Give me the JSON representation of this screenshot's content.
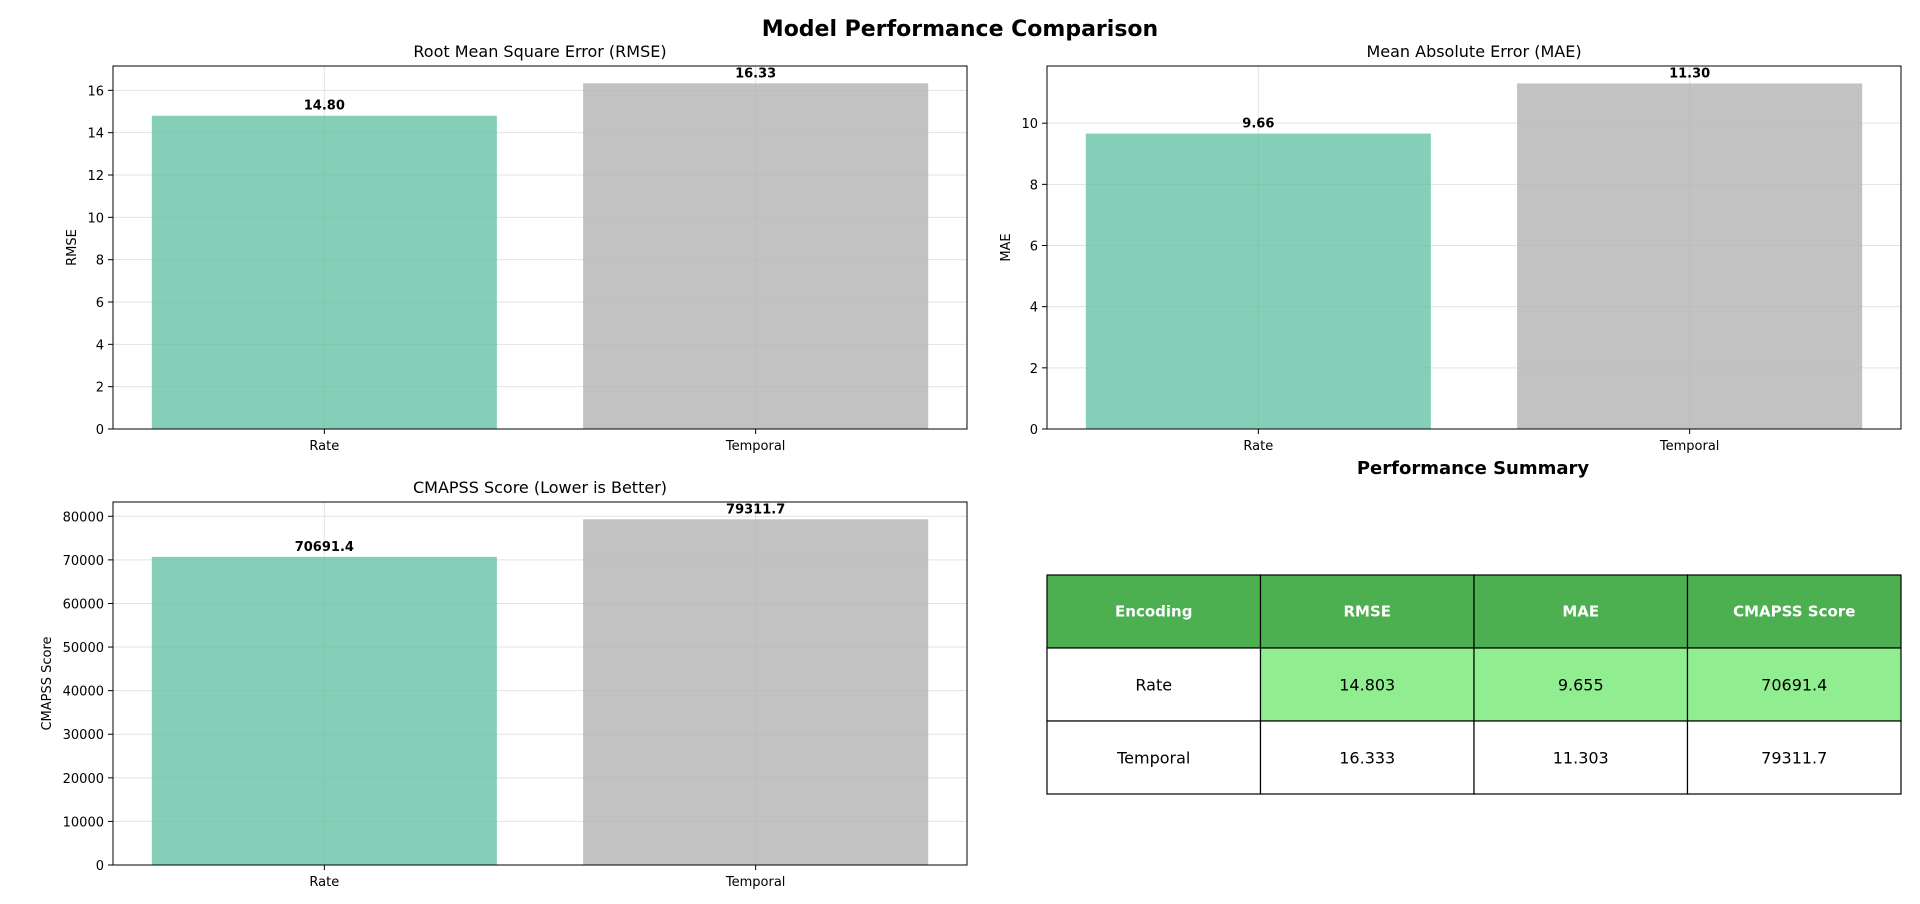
{
  "figure": {
    "title": "Model Performance Comparison"
  },
  "chart_data": [
    {
      "type": "bar",
      "title": "Root Mean Square Error (RMSE)",
      "xlabel": "",
      "ylabel": "RMSE",
      "categories": [
        "Rate",
        "Temporal"
      ],
      "values": [
        14.8,
        16.33
      ],
      "value_labels": [
        "14.80",
        "16.33"
      ],
      "ylim": [
        0,
        17.15
      ],
      "yticks": [
        0,
        2,
        4,
        6,
        8,
        10,
        12,
        14,
        16
      ],
      "bar_colors": [
        "#66c2a5",
        "#b3b3b3"
      ],
      "grid": true
    },
    {
      "type": "bar",
      "title": "Mean Absolute Error (MAE)",
      "xlabel": "",
      "ylabel": "MAE",
      "categories": [
        "Rate",
        "Temporal"
      ],
      "values": [
        9.66,
        11.3
      ],
      "value_labels": [
        "9.66",
        "11.30"
      ],
      "ylim": [
        0,
        11.87
      ],
      "yticks": [
        0,
        2,
        4,
        6,
        8,
        10
      ],
      "bar_colors": [
        "#66c2a5",
        "#b3b3b3"
      ],
      "grid": true
    },
    {
      "type": "bar",
      "title": "CMAPSS Score (Lower is Better)",
      "xlabel": "",
      "ylabel": "CMAPSS Score",
      "categories": [
        "Rate",
        "Temporal"
      ],
      "values": [
        70691.4,
        79311.7
      ],
      "value_labels": [
        "70691.4",
        "79311.7"
      ],
      "ylim": [
        0,
        83277
      ],
      "yticks": [
        0,
        10000,
        20000,
        30000,
        40000,
        50000,
        60000,
        70000,
        80000
      ],
      "bar_colors": [
        "#66c2a5",
        "#b3b3b3"
      ],
      "grid": true
    },
    {
      "type": "table",
      "title": "Performance Summary",
      "columns": [
        "Encoding",
        "RMSE",
        "MAE",
        "CMAPSS Score"
      ],
      "rows": [
        [
          "Rate",
          "14.803",
          "9.655",
          "70691.4"
        ],
        [
          "Temporal",
          "16.333",
          "11.303",
          "79311.7"
        ]
      ],
      "header_color": "#4caf50",
      "highlight_color": "#90ee90"
    }
  ]
}
